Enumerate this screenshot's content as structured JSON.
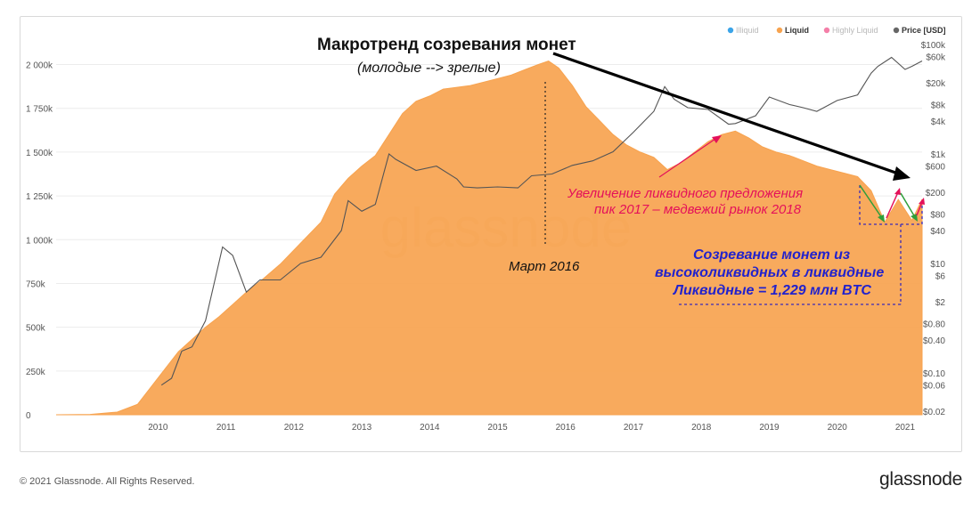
{
  "chart_data": {
    "type": "area",
    "title": "Макротренд созревания монет",
    "subtitle": "(молодые --> зрелые)",
    "watermark": "glassnode",
    "x_ticks": [
      "2010",
      "2011",
      "2012",
      "2013",
      "2014",
      "2015",
      "2016",
      "2017",
      "2018",
      "2019",
      "2020",
      "2021"
    ],
    "y_left_ticks": [
      "0",
      "250k",
      "500k",
      "750k",
      "1 000k",
      "1 250k",
      "1 500k",
      "1 750k",
      "2 000k"
    ],
    "y_left_lim": [
      0,
      2150000
    ],
    "y_right_ticks": [
      "$0.02",
      "$0.06",
      "$0.10",
      "$0.40",
      "$0.80",
      "$2",
      "$6",
      "$10",
      "$40",
      "$80",
      "$200",
      "$600",
      "$1k",
      "$4k",
      "$8k",
      "$20k",
      "$60k",
      "$100k"
    ],
    "y_right_values": [
      0.02,
      0.06,
      0.1,
      0.4,
      0.8,
      2,
      6,
      10,
      40,
      80,
      200,
      600,
      1000,
      4000,
      8000,
      20000,
      60000,
      100000
    ],
    "y_right_scale": "log",
    "legend": {
      "placement": "top-right",
      "items": [
        {
          "label": "Illiquid",
          "color": "#3ba4e8"
        },
        {
          "label": "Liquid",
          "color": "#f7a34f"
        },
        {
          "label": "Highly Liquid",
          "color": "#f47fa8"
        },
        {
          "label": "Price [USD]",
          "color": "#666666"
        }
      ]
    },
    "series": [
      {
        "name": "Liquid",
        "color": "#f7a34f",
        "x": [
          2009.0,
          2009.5,
          2009.9,
          2010.2,
          2010.4,
          2010.6,
          2010.8,
          2011.0,
          2011.2,
          2011.4,
          2011.6,
          2011.8,
          2012.0,
          2012.3,
          2012.6,
          2012.9,
          2013.1,
          2013.3,
          2013.5,
          2013.7,
          2013.9,
          2014.1,
          2014.3,
          2014.5,
          2014.7,
          2014.9,
          2015.1,
          2015.3,
          2015.5,
          2015.7,
          2015.9,
          2016.1,
          2016.25,
          2016.4,
          2016.6,
          2016.8,
          2017.0,
          2017.2,
          2017.4,
          2017.6,
          2017.8,
          2018.0,
          2018.2,
          2018.4,
          2018.6,
          2018.8,
          2019.0,
          2019.2,
          2019.4,
          2019.6,
          2019.8,
          2020.0,
          2020.2,
          2020.4,
          2020.6,
          2020.8,
          2021.0,
          2021.2,
          2021.4,
          2021.6,
          2021.75
        ],
        "values": [
          0,
          2000,
          15000,
          60000,
          160000,
          260000,
          360000,
          430000,
          500000,
          560000,
          630000,
          700000,
          760000,
          860000,
          980000,
          1100000,
          1260000,
          1350000,
          1420000,
          1480000,
          1600000,
          1720000,
          1790000,
          1820000,
          1860000,
          1870000,
          1880000,
          1900000,
          1920000,
          1940000,
          1970000,
          2000000,
          2020000,
          1980000,
          1880000,
          1760000,
          1680000,
          1600000,
          1540000,
          1500000,
          1470000,
          1400000,
          1440000,
          1500000,
          1560000,
          1600000,
          1620000,
          1580000,
          1530000,
          1500000,
          1480000,
          1450000,
          1420000,
          1400000,
          1380000,
          1360000,
          1280000,
          1100000,
          1229000,
          1110000,
          1230000
        ]
      },
      {
        "name": "Price [USD]",
        "color": "#555555",
        "x": [
          2010.55,
          2010.7,
          2010.85,
          2011.0,
          2011.2,
          2011.45,
          2011.6,
          2011.8,
          2012.0,
          2012.3,
          2012.6,
          2012.9,
          2013.2,
          2013.3,
          2013.5,
          2013.7,
          2013.9,
          2014.0,
          2014.3,
          2014.6,
          2014.9,
          2015.0,
          2015.2,
          2015.5,
          2015.8,
          2016.0,
          2016.3,
          2016.6,
          2016.9,
          2017.2,
          2017.5,
          2017.8,
          2017.96,
          2018.1,
          2018.3,
          2018.6,
          2018.9,
          2019.0,
          2019.3,
          2019.5,
          2019.8,
          2020.0,
          2020.2,
          2020.5,
          2020.8,
          2021.0,
          2021.1,
          2021.3,
          2021.5,
          2021.6,
          2021.75
        ],
        "values": [
          0.06,
          0.08,
          0.25,
          0.3,
          0.9,
          20,
          14,
          3,
          5,
          5,
          10,
          13,
          40,
          140,
          90,
          120,
          1000,
          800,
          500,
          600,
          350,
          250,
          240,
          250,
          240,
          400,
          430,
          620,
          750,
          1100,
          2500,
          6000,
          17000,
          10000,
          7000,
          6500,
          3500,
          3600,
          5000,
          11000,
          8000,
          7000,
          6000,
          9500,
          12000,
          30000,
          40000,
          58000,
          35000,
          40000,
          50000
        ]
      }
    ],
    "annotations": [
      {
        "text": "Март 2016",
        "color": "#111111"
      },
      {
        "text": "Увеличение ликвидного предложения",
        "color": "#e4105a"
      },
      {
        "text": "пик 2017 – медвежий рынок 2018",
        "color": "#e4105a"
      },
      {
        "text": "Созревание монет из",
        "color": "#2222cc"
      },
      {
        "text": "высоколиквидных в ликвидные",
        "color": "#2222cc"
      },
      {
        "text": "Ликвидные = 1,229 млн BTC",
        "color": "#2222cc"
      }
    ]
  },
  "footer": {
    "copyright": "© 2021 Glassnode. All Rights Reserved.",
    "logo": "glassnode"
  }
}
